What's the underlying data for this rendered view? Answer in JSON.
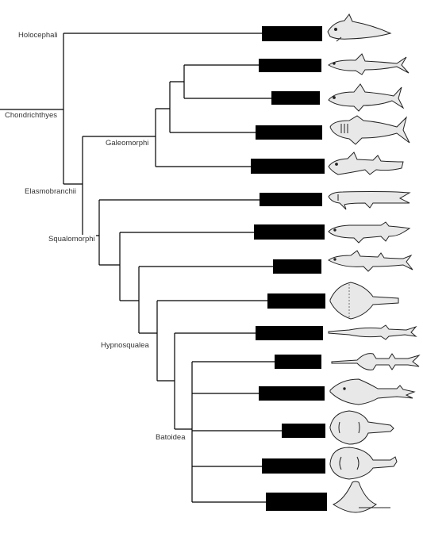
{
  "clades": {
    "holocephali": "Holocephali",
    "chondrichthyes": "Chondrichthyes",
    "galeomorphi": "Galeomorphi",
    "elasmobranchii": "Elasmobranchii",
    "squalomorphi": "Squalomorphi",
    "hypnosqualea": "Hypnosqualea",
    "batoidea": "Batoidea"
  },
  "taxa": [
    {
      "label": "",
      "redacted": true,
      "silhouette": "chimaera-icon"
    },
    {
      "label": "",
      "redacted": true,
      "silhouette": "requiem-shark-icon"
    },
    {
      "label": "",
      "redacted": true,
      "silhouette": "mackerel-shark-icon"
    },
    {
      "label": "",
      "redacted": true,
      "silhouette": "whale-shark-icon"
    },
    {
      "label": "",
      "redacted": true,
      "silhouette": "bullhead-shark-icon"
    },
    {
      "label": "",
      "redacted": true,
      "silhouette": "frilled-shark-icon"
    },
    {
      "label": "",
      "redacted": true,
      "silhouette": "sixgill-shark-icon"
    },
    {
      "label": "",
      "redacted": true,
      "silhouette": "dogfish-icon"
    },
    {
      "label": "",
      "redacted": true,
      "silhouette": "angel-shark-icon"
    },
    {
      "label": "",
      "redacted": true,
      "silhouette": "sawshark-icon"
    },
    {
      "label": "",
      "redacted": true,
      "silhouette": "sawfish-icon"
    },
    {
      "label": "",
      "redacted": true,
      "silhouette": "guitarfish-icon"
    },
    {
      "label": "",
      "redacted": true,
      "silhouette": "electric-ray-icon"
    },
    {
      "label": "",
      "redacted": true,
      "silhouette": "skate-icon"
    },
    {
      "label": "",
      "redacted": true,
      "silhouette": "stingray-icon"
    }
  ],
  "colors": {
    "lines": "#000000",
    "silhouette_fill": "#e8e8e8",
    "silhouette_stroke": "#222222",
    "redaction": "#000000"
  }
}
